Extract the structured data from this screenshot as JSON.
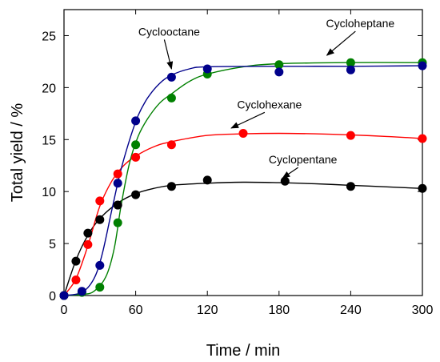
{
  "chart_data": {
    "type": "scatter",
    "xlabel": "Time / min",
    "ylabel": "Total yield / %",
    "xlim": [
      0,
      300
    ],
    "ylim": [
      0,
      27.5
    ],
    "xticks": [
      0,
      60,
      120,
      180,
      240,
      300
    ],
    "yticks": [
      0,
      5,
      10,
      15,
      20,
      25
    ],
    "grid": false,
    "series": [
      {
        "name": "Cyclopentane",
        "color": "#000000",
        "points": [
          [
            0,
            0
          ],
          [
            10,
            3.3
          ],
          [
            20,
            6.0
          ],
          [
            30,
            7.3
          ],
          [
            45,
            8.7
          ],
          [
            60,
            9.7
          ],
          [
            90,
            10.5
          ],
          [
            120,
            11.1
          ],
          [
            185,
            11.0
          ],
          [
            240,
            10.5
          ],
          [
            300,
            10.3
          ]
        ],
        "curve": [
          [
            0,
            0
          ],
          [
            10,
            3.4
          ],
          [
            20,
            5.8
          ],
          [
            30,
            7.4
          ],
          [
            45,
            8.9
          ],
          [
            60,
            9.8
          ],
          [
            75,
            10.3
          ],
          [
            90,
            10.6
          ],
          [
            120,
            10.8
          ],
          [
            150,
            10.9
          ],
          [
            180,
            10.85
          ],
          [
            210,
            10.75
          ],
          [
            240,
            10.6
          ],
          [
            270,
            10.45
          ],
          [
            300,
            10.3
          ]
        ]
      },
      {
        "name": "Cyclohexane",
        "color": "#ff0000",
        "points": [
          [
            0,
            0
          ],
          [
            10,
            1.5
          ],
          [
            20,
            4.9
          ],
          [
            30,
            9.1
          ],
          [
            45,
            11.7
          ],
          [
            60,
            13.3
          ],
          [
            90,
            14.5
          ],
          [
            150,
            15.6
          ],
          [
            240,
            15.4
          ],
          [
            300,
            15.1
          ]
        ],
        "curve": [
          [
            0,
            0
          ],
          [
            10,
            1.6
          ],
          [
            20,
            4.8
          ],
          [
            30,
            8.6
          ],
          [
            40,
            11.0
          ],
          [
            50,
            12.5
          ],
          [
            60,
            13.4
          ],
          [
            75,
            14.3
          ],
          [
            90,
            14.8
          ],
          [
            120,
            15.4
          ],
          [
            150,
            15.55
          ],
          [
            180,
            15.6
          ],
          [
            210,
            15.55
          ],
          [
            240,
            15.45
          ],
          [
            270,
            15.3
          ],
          [
            300,
            15.1
          ]
        ]
      },
      {
        "name": "Cycloheptane",
        "color": "#008000",
        "points": [
          [
            0,
            0
          ],
          [
            15,
            0.3
          ],
          [
            30,
            0.8
          ],
          [
            45,
            7.0
          ],
          [
            60,
            14.5
          ],
          [
            90,
            19.0
          ],
          [
            120,
            21.3
          ],
          [
            180,
            22.2
          ],
          [
            240,
            22.4
          ],
          [
            300,
            22.4
          ]
        ],
        "curve": [
          [
            0,
            0
          ],
          [
            15,
            0.1
          ],
          [
            25,
            0.4
          ],
          [
            35,
            1.8
          ],
          [
            42,
            4.5
          ],
          [
            48,
            8.8
          ],
          [
            55,
            12.8
          ],
          [
            62,
            15.3
          ],
          [
            70,
            17.0
          ],
          [
            80,
            18.5
          ],
          [
            90,
            19.4
          ],
          [
            105,
            20.6
          ],
          [
            120,
            21.3
          ],
          [
            150,
            22.0
          ],
          [
            180,
            22.3
          ],
          [
            240,
            22.4
          ],
          [
            300,
            22.4
          ]
        ]
      },
      {
        "name": "Cyclooctane",
        "color": "#00008b",
        "points": [
          [
            0,
            0
          ],
          [
            15,
            0.4
          ],
          [
            30,
            2.9
          ],
          [
            45,
            10.8
          ],
          [
            60,
            16.8
          ],
          [
            90,
            21.0
          ],
          [
            120,
            21.8
          ],
          [
            180,
            21.5
          ],
          [
            240,
            21.7
          ],
          [
            300,
            22.1
          ]
        ],
        "curve": [
          [
            0,
            0
          ],
          [
            15,
            0.3
          ],
          [
            25,
            1.6
          ],
          [
            32,
            4.0
          ],
          [
            40,
            8.2
          ],
          [
            47,
            11.8
          ],
          [
            55,
            15.0
          ],
          [
            62,
            17.3
          ],
          [
            70,
            19.0
          ],
          [
            80,
            20.4
          ],
          [
            90,
            21.2
          ],
          [
            105,
            21.8
          ],
          [
            120,
            22.0
          ],
          [
            180,
            22.05
          ],
          [
            240,
            22.05
          ],
          [
            300,
            22.1
          ]
        ]
      }
    ],
    "annotations": [
      {
        "text": "Cyclooctane",
        "series": "Cyclooctane",
        "x": 88,
        "y": 25.0,
        "arrow_to": [
          90,
          21.8
        ]
      },
      {
        "text": "Cycloheptane",
        "series": "Cycloheptane",
        "x": 248,
        "y": 25.8,
        "arrow_to": [
          220,
          23.1
        ]
      },
      {
        "text": "Cyclohexane",
        "series": "Cyclohexane",
        "x": 172,
        "y": 18.0,
        "arrow_to": [
          140,
          16.1
        ]
      },
      {
        "text": "Cyclopentane",
        "series": "Cyclopentane",
        "x": 200,
        "y": 12.7,
        "arrow_to": [
          183,
          11.3
        ]
      }
    ]
  }
}
